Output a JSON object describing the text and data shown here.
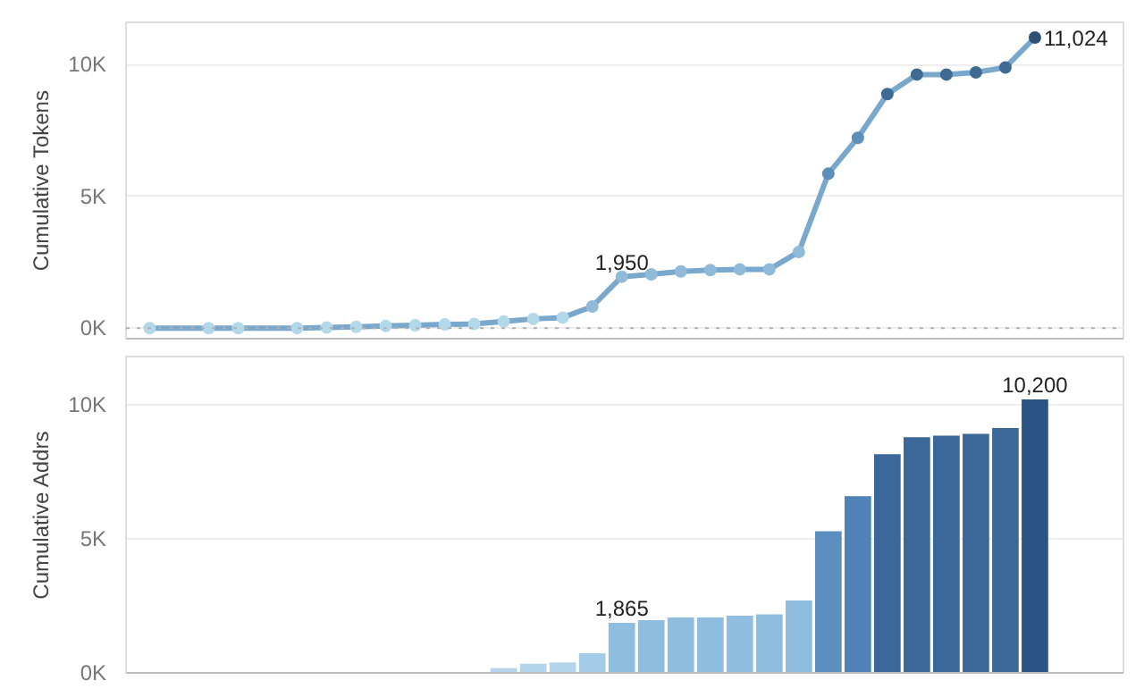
{
  "chart_data": [
    {
      "type": "line",
      "ylabel": "Cumulative Tokens",
      "categories": [
        null,
        null,
        null,
        null,
        null,
        null,
        null,
        null,
        null,
        null,
        null,
        null,
        null,
        null,
        null,
        null,
        null,
        null,
        null,
        null,
        null,
        null,
        null,
        null,
        null,
        null,
        null,
        null,
        null,
        null,
        null
      ],
      "series": [
        {
          "color": "#7aa7cc",
          "values": [
            0,
            null,
            0,
            0,
            null,
            0,
            20,
            50,
            80,
            110,
            140,
            160,
            250,
            350,
            400,
            820,
            1950,
            2040,
            2150,
            2200,
            2230,
            2230,
            2890,
            5860,
            7220,
            8880,
            9620,
            9620,
            9700,
            9890,
            11024
          ],
          "colors": [
            "#b3d8ea",
            "#b3d8ea",
            "#b3d8ea",
            "#b3d8ea",
            "#b3d8ea",
            "#b3d8ea",
            "#b3d8ea",
            "#b3d8ea",
            "#b3d8ea",
            "#b3d8ea",
            "#b3d8ea",
            "#b3d8ea",
            "#b3d8ea",
            "#b3d8ea",
            "#b3d8ea",
            "#8fbbd9",
            "#8fbbd9",
            "#8fbbd9",
            "#8fbbd9",
            "#8fbbd9",
            "#8fbbd9",
            "#8fbbd9",
            "#8fbbd9",
            "#5e8fba",
            "#5e8fba",
            "#3f6a93",
            "#3f6a93",
            "#3f6a93",
            "#3f6a93",
            "#3f6a93",
            "#2f5274"
          ],
          "value_labels": [
            null,
            null,
            null,
            null,
            null,
            null,
            null,
            null,
            null,
            null,
            null,
            null,
            null,
            null,
            null,
            null,
            "1,950",
            null,
            null,
            null,
            null,
            null,
            null,
            null,
            null,
            null,
            null,
            null,
            null,
            null,
            "11,024"
          ]
        }
      ],
      "ylim": [
        -400,
        11600
      ],
      "yticks": [
        {
          "value": 0,
          "label": "0K"
        },
        {
          "value": 5000,
          "label": "5K"
        },
        {
          "value": 10000,
          "label": "10K"
        }
      ],
      "grid": "y",
      "marker": "circle",
      "line_style": "solid",
      "tick_labels": "y",
      "ref_lines": [
        {
          "axis": "y",
          "value": 0,
          "color": "#b0b0b0",
          "line_style": "dotted"
        }
      ]
    },
    {
      "type": "bar",
      "ylabel": "Cumulative Addrs",
      "categories": [
        null,
        null,
        null,
        null,
        null,
        null,
        null,
        null,
        null,
        null,
        null,
        null,
        null,
        null,
        null,
        null,
        null,
        null,
        null,
        null,
        null,
        null,
        null,
        null,
        null,
        null,
        null,
        null,
        null,
        null,
        null
      ],
      "values": [
        0,
        0,
        0,
        0,
        0,
        0,
        0,
        null,
        null,
        null,
        null,
        null,
        180,
        340,
        390,
        730,
        1865,
        1970,
        2070,
        2070,
        2130,
        2180,
        2700,
        5280,
        6590,
        8160,
        8790,
        8850,
        8920,
        9130,
        10200
      ],
      "colors": [
        "#b3d4ea",
        "#b3d4ea",
        "#b3d4ea",
        "#b3d4ea",
        "#b3d4ea",
        "#b3d4ea",
        "#b3d4ea",
        "#b3d4ea",
        "#b3d4ea",
        "#b3d4ea",
        "#b3d4ea",
        "#b3d4ea",
        "#b3d4ea",
        "#b3d4ea",
        "#b3d4ea",
        "#a3cbe6",
        "#8fbde0",
        "#8fbde0",
        "#8fbde0",
        "#8fbde0",
        "#8fbde0",
        "#8fbde0",
        "#8fbde0",
        "#5b8fc0",
        "#4f82b6",
        "#3b6898",
        "#3b6898",
        "#3b6898",
        "#3b6898",
        "#3b6898",
        "#2b5584"
      ],
      "value_labels": [
        null,
        null,
        null,
        null,
        null,
        null,
        null,
        null,
        null,
        null,
        null,
        null,
        null,
        null,
        null,
        null,
        "1,865",
        null,
        null,
        null,
        null,
        null,
        null,
        null,
        null,
        null,
        null,
        null,
        null,
        null,
        "10,200"
      ],
      "ylim": [
        0,
        11800
      ],
      "yticks": [
        {
          "value": 0,
          "label": "0K"
        },
        {
          "value": 5000,
          "label": "5K"
        },
        {
          "value": 10000,
          "label": "10K"
        }
      ],
      "grid": "y",
      "tick_labels": "y"
    }
  ]
}
